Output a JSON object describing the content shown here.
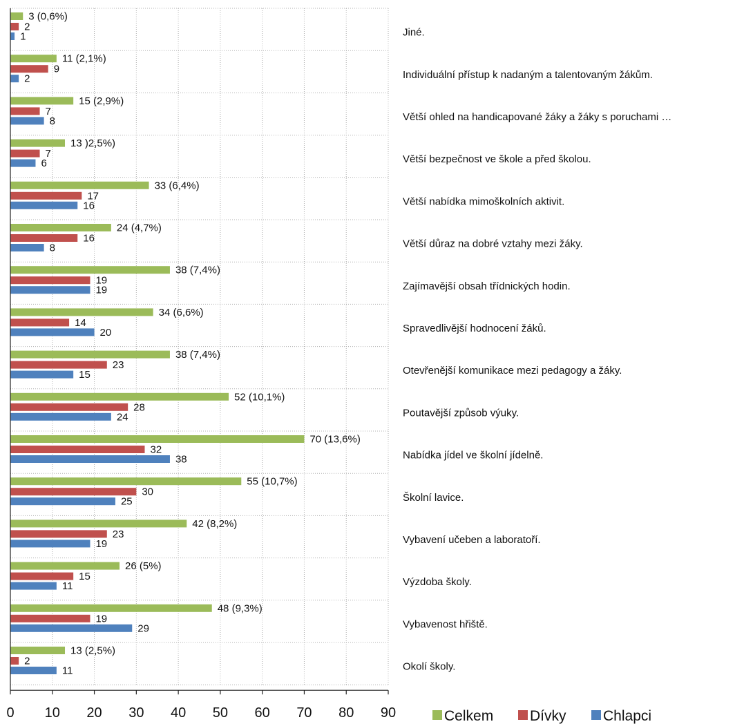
{
  "chart_data": {
    "type": "bar",
    "orientation": "horizontal",
    "title": "",
    "xlabel": "",
    "ylabel": "",
    "xlim": [
      0,
      90
    ],
    "x_ticks": [
      "0",
      "10",
      "20",
      "30",
      "40",
      "50",
      "60",
      "70",
      "80",
      "90"
    ],
    "grid": "vertical dotted",
    "legend_position": "bottom-right",
    "categories": [
      "Jiné.",
      "Individuální přístup k nadaným a talentovaným žákům.",
      "Větší ohled na handicapované žáky a žáky s poruchami …",
      "Větší bezpečnost ve škole a před školou.",
      "Větší nabídka mimoškolních aktivit.",
      "Větší důraz na dobré vztahy mezi žáky.",
      "Zajímavější obsah třídnických hodin.",
      "Spravedlivější hodnocení žáků.",
      "Otevřenější komunikace mezi pedagogy a žáky.",
      "Poutavější způsob výuky.",
      "Nabídka jídel ve školní jídelně.",
      "Školní lavice.",
      "Vybavení učeben a laboratoří.",
      "Výzdoba školy.",
      "Vybavenost hřiště.",
      "Okolí školy."
    ],
    "series": [
      {
        "name": "Celkem",
        "color": "#9BBB59",
        "values": [
          3,
          11,
          15,
          13,
          33,
          24,
          38,
          34,
          38,
          52,
          70,
          55,
          42,
          26,
          48,
          13
        ],
        "labels": [
          "3 (0,6%)",
          "11 (2,1%)",
          "15 (2,9%)",
          "13 )2,5%)",
          "33 (6,4%)",
          "24 (4,7%)",
          "38 (7,4%)",
          "34 (6,6%)",
          "38 (7,4%)",
          "52 (10,1%)",
          "70 (13,6%)",
          "55 (10,7%)",
          "42 (8,2%)",
          "26 (5%)",
          "48 (9,3%)",
          "13 (2,5%)"
        ]
      },
      {
        "name": "Dívky",
        "color": "#C0504D",
        "values": [
          2,
          9,
          7,
          7,
          17,
          16,
          19,
          14,
          23,
          28,
          32,
          30,
          23,
          15,
          19,
          2
        ],
        "labels": [
          "2",
          "9",
          "7",
          "7",
          "17",
          "16",
          "19",
          "14",
          "23",
          "28",
          "32",
          "30",
          "23",
          "15",
          "19",
          "2"
        ]
      },
      {
        "name": "Chlapci",
        "color": "#4F81BD",
        "values": [
          1,
          2,
          8,
          6,
          16,
          8,
          19,
          20,
          15,
          24,
          38,
          25,
          19,
          11,
          29,
          11
        ],
        "labels": [
          "1",
          "2",
          "8",
          "6",
          "16",
          "8",
          "19",
          "20",
          "15",
          "24",
          "38",
          "25",
          "19",
          "11",
          "29",
          "11"
        ]
      }
    ]
  }
}
